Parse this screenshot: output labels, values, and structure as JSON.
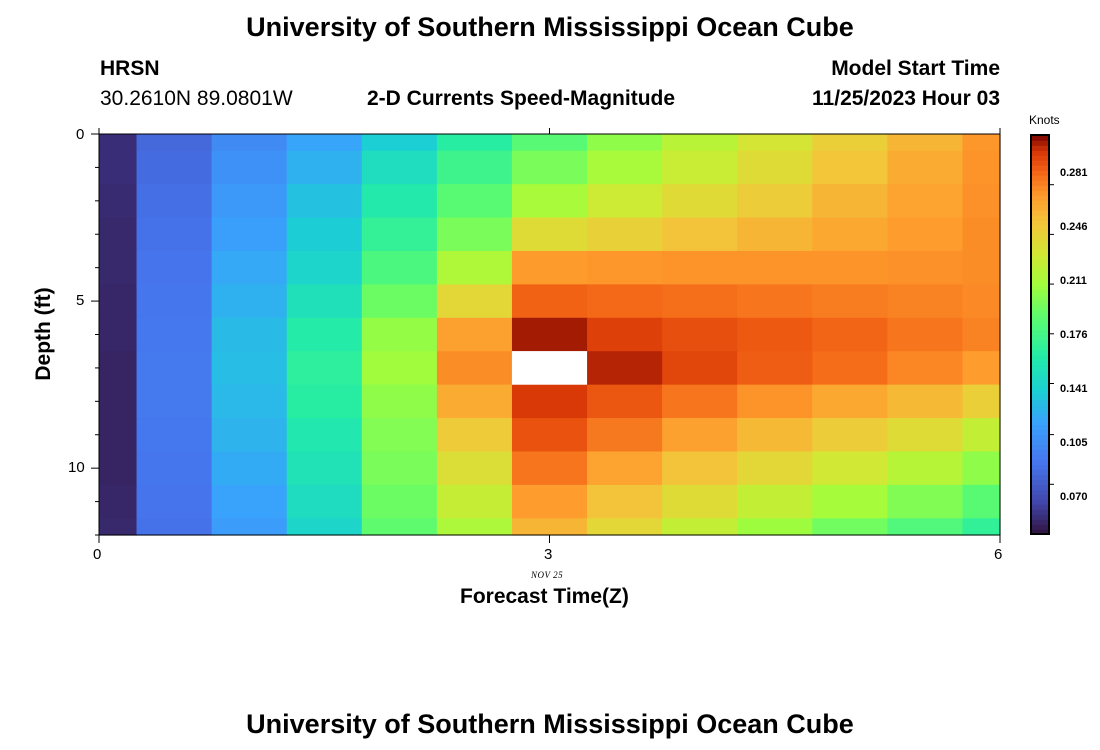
{
  "header": {
    "title": "University of Southern Mississippi Ocean Cube",
    "station": "HRSN",
    "coords": "30.2610N  89.0801W",
    "subtitle": "2-D Currents Speed-Magnitude",
    "model_label": "Model Start Time",
    "model_time": "11/25/2023 Hour 03"
  },
  "footer": {
    "title": "University of Southern Mississippi Ocean Cube"
  },
  "chart_data": {
    "type": "heatmap",
    "title": "2-D Currents Speed-Magnitude",
    "xlabel": "Forecast Time(Z)",
    "ylabel": "Depth (ft)",
    "x_sublabel": "NOV 25",
    "xlim": [
      0,
      6
    ],
    "ylim": [
      0,
      12
    ],
    "x_ticks": [
      "0",
      "3",
      "6"
    ],
    "y_ticks": [
      "0",
      "5",
      "10"
    ],
    "colorbar": {
      "label": "Knots",
      "min": 0.035,
      "max": 0.316,
      "ticks": [
        "0.070",
        "0.105",
        "0.141",
        "0.176",
        "0.211",
        "0.246",
        "0.281"
      ],
      "tick_values": [
        0.07,
        0.105,
        0.141,
        0.176,
        0.211,
        0.246,
        0.281
      ]
    },
    "x_edges": [
      0,
      0.25,
      0.75,
      1.25,
      1.75,
      2.25,
      2.75,
      3.25,
      3.75,
      4.25,
      4.75,
      5.25,
      5.75,
      6
    ],
    "y_edges": [
      0,
      0.5,
      1.5,
      2.5,
      3.5,
      4.5,
      5.5,
      6.5,
      7.5,
      8.5,
      9.5,
      10.5,
      11.5,
      12
    ],
    "values": [
      [
        0.047,
        0.078,
        0.099,
        0.115,
        0.136,
        0.163,
        0.185,
        0.205,
        0.221,
        0.234,
        0.248,
        0.262,
        0.275
      ],
      [
        0.047,
        0.08,
        0.103,
        0.121,
        0.148,
        0.174,
        0.198,
        0.214,
        0.228,
        0.24,
        0.254,
        0.266,
        0.276
      ],
      [
        0.046,
        0.082,
        0.108,
        0.129,
        0.159,
        0.186,
        0.214,
        0.23,
        0.241,
        0.25,
        0.262,
        0.27,
        0.277
      ],
      [
        0.045,
        0.084,
        0.112,
        0.135,
        0.169,
        0.198,
        0.24,
        0.247,
        0.255,
        0.262,
        0.268,
        0.273,
        0.278
      ],
      [
        0.045,
        0.085,
        0.117,
        0.141,
        0.18,
        0.217,
        0.274,
        0.275,
        0.276,
        0.276,
        0.276,
        0.277,
        0.278
      ],
      [
        0.044,
        0.086,
        0.121,
        0.151,
        0.193,
        0.243,
        0.291,
        0.289,
        0.287,
        0.285,
        0.283,
        0.281,
        0.279
      ],
      [
        0.044,
        0.087,
        0.126,
        0.161,
        0.207,
        0.271,
        0.311,
        0.302,
        0.297,
        0.294,
        0.29,
        0.285,
        0.281
      ],
      [
        0.043,
        0.088,
        0.127,
        0.166,
        0.211,
        0.278,
        null,
        0.309,
        0.3,
        0.293,
        0.288,
        0.28,
        0.273
      ],
      [
        0.043,
        0.088,
        0.125,
        0.163,
        0.205,
        0.266,
        0.304,
        0.295,
        0.285,
        0.276,
        0.268,
        0.26,
        0.248
      ],
      [
        0.043,
        0.087,
        0.122,
        0.157,
        0.201,
        0.251,
        0.296,
        0.284,
        0.271,
        0.26,
        0.25,
        0.24,
        0.225
      ],
      [
        0.043,
        0.086,
        0.118,
        0.152,
        0.198,
        0.238,
        0.285,
        0.27,
        0.255,
        0.243,
        0.232,
        0.22,
        0.205
      ],
      [
        0.044,
        0.085,
        0.114,
        0.147,
        0.193,
        0.227,
        0.273,
        0.255,
        0.24,
        0.225,
        0.213,
        0.2,
        0.186
      ],
      [
        0.045,
        0.084,
        0.11,
        0.142,
        0.188,
        0.216,
        0.262,
        0.243,
        0.225,
        0.21,
        0.195,
        0.182,
        0.168
      ]
    ]
  }
}
